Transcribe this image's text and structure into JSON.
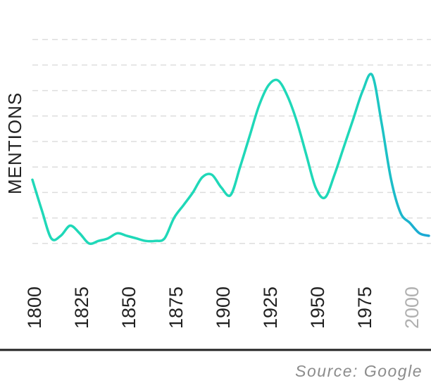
{
  "chart_data": {
    "type": "line",
    "ylabel": "MENTIONS",
    "xlabel": "",
    "source": "Source: Google",
    "xlim": [
      1800,
      2010
    ],
    "ylim": [
      0,
      10
    ],
    "x_ticks": [
      {
        "label": "1800",
        "value": 1800,
        "muted": false
      },
      {
        "label": "1825",
        "value": 1825,
        "muted": false
      },
      {
        "label": "1850",
        "value": 1850,
        "muted": false
      },
      {
        "label": "1875",
        "value": 1875,
        "muted": false
      },
      {
        "label": "1900",
        "value": 1900,
        "muted": false
      },
      {
        "label": "1925",
        "value": 1925,
        "muted": false
      },
      {
        "label": "1950",
        "value": 1950,
        "muted": false
      },
      {
        "label": "1975",
        "value": 1975,
        "muted": false
      },
      {
        "label": "2000",
        "value": 2000,
        "muted": true
      }
    ],
    "grid": true,
    "gridlines_y": [
      1,
      2,
      3,
      4,
      5,
      6,
      7,
      8,
      9
    ],
    "colors": {
      "line_start": "#1fd8b8",
      "line_end": "#1aa6d6",
      "grid": "#dddddd",
      "tick": "#222222",
      "muted_tick": "#b0b0b0",
      "baseline": "#222222"
    },
    "series": [
      {
        "x": [
          1800,
          1805,
          1810,
          1815,
          1820,
          1825,
          1830,
          1835,
          1840,
          1845,
          1850,
          1855,
          1860,
          1865,
          1870,
          1875,
          1880,
          1885,
          1890,
          1895,
          1900,
          1905,
          1910,
          1915,
          1920,
          1925,
          1930,
          1935,
          1940,
          1945,
          1950,
          1955,
          1960,
          1965,
          1970,
          1975,
          1980,
          1985,
          1990,
          1995,
          2000,
          2005,
          2010
        ],
        "y": [
          3.5,
          2.3,
          1.2,
          1.3,
          1.7,
          1.4,
          1.0,
          1.1,
          1.2,
          1.4,
          1.3,
          1.2,
          1.1,
          1.1,
          1.2,
          2.0,
          2.5,
          3.0,
          3.6,
          3.7,
          3.2,
          2.9,
          4.0,
          5.2,
          6.4,
          7.2,
          7.4,
          6.8,
          5.8,
          4.5,
          3.2,
          2.8,
          3.7,
          4.8,
          5.9,
          7.0,
          7.6,
          5.7,
          3.5,
          2.2,
          1.8,
          1.4,
          1.3
        ]
      }
    ]
  }
}
